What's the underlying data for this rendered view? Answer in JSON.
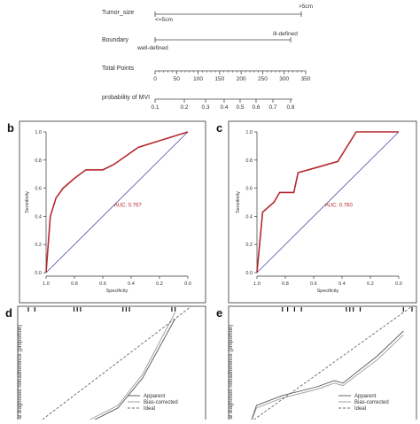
{
  "nomogram": {
    "rows": [
      {
        "label": "Tumor_size",
        "min_label": "<=5cm",
        "max_label": ">5cm"
      },
      {
        "label": "Boundary",
        "min_label": "well-defined",
        "max_label": "ill-defined"
      },
      {
        "label": "Total Points",
        "ticks": [
          "0",
          "50",
          "100",
          "150",
          "200",
          "250",
          "300",
          "350"
        ]
      },
      {
        "label": "probability of MVI",
        "ticks": [
          "0.1",
          "0.2",
          "0.3",
          "0.4",
          "0.5",
          "0.6",
          "0.7",
          "0.8"
        ]
      }
    ]
  },
  "chart_data": [
    {
      "type": "line",
      "panel_label": "b",
      "xlabel": "Specificity",
      "ylabel": "Sensitivity",
      "xticks": [
        "1.0",
        "0.8",
        "0.6",
        "0.4",
        "0.2",
        "0.0"
      ],
      "yticks": [
        "0.0",
        "0.2",
        "0.4",
        "0.6",
        "0.8",
        "1.0"
      ],
      "xlim": [
        1.0,
        0.0
      ],
      "ylim": [
        0.0,
        1.0
      ],
      "annotation": "AUC: 0.767",
      "series": [
        {
          "color": "#b5282e",
          "x": [
            1.0,
            0.97,
            0.93,
            0.88,
            0.8,
            0.72,
            0.6,
            0.52,
            0.35,
            0.0
          ],
          "y": [
            0.0,
            0.4,
            0.53,
            0.6,
            0.67,
            0.73,
            0.73,
            0.77,
            0.89,
            1.0
          ]
        }
      ],
      "reference": {
        "color": "#4a4aa8",
        "x": [
          1.0,
          0.0
        ],
        "y": [
          0.0,
          1.0
        ]
      }
    },
    {
      "type": "line",
      "panel_label": "c",
      "xlabel": "Specificity",
      "ylabel": "Sensitivity",
      "xticks": [
        "1.0",
        "0.8",
        "0.6",
        "0.4",
        "0.2",
        "0.0"
      ],
      "yticks": [
        "0.0",
        "0.2",
        "0.4",
        "0.6",
        "0.8",
        "1.0"
      ],
      "xlim": [
        1.0,
        0.0
      ],
      "ylim": [
        0.0,
        1.0
      ],
      "annotation": "AUC: 0.760",
      "series": [
        {
          "color": "#b5282e",
          "x": [
            1.0,
            0.96,
            0.88,
            0.84,
            0.74,
            0.71,
            0.57,
            0.43,
            0.3,
            0.0
          ],
          "y": [
            0.0,
            0.43,
            0.5,
            0.57,
            0.57,
            0.71,
            0.75,
            0.79,
            1.0,
            1.0
          ]
        }
      ],
      "reference": {
        "color": "#4a4aa8",
        "x": [
          1.0,
          0.0
        ],
        "y": [
          0.0,
          1.0
        ]
      }
    },
    {
      "type": "line",
      "panel_label": "d",
      "ylabel": "Actual diagnosed nonadherence (proportion)",
      "xlim": [
        0.0,
        1.0
      ],
      "ylim": [
        0.0,
        1.0
      ],
      "legend_position": "bottom-right",
      "rug": [
        0.0,
        0.04,
        0.28,
        0.3,
        0.32,
        0.58,
        0.6,
        0.62,
        0.88,
        0.9
      ],
      "series": [
        {
          "name": "Apparent",
          "style": "solid",
          "color": "#555555",
          "x": [
            0.25,
            0.4,
            0.55,
            0.7,
            0.9
          ],
          "y": [
            0.0,
            0.08,
            0.18,
            0.42,
            0.9
          ]
        },
        {
          "name": "Bias-corrected",
          "style": "solid",
          "color": "#999999",
          "x": [
            0.25,
            0.4,
            0.55,
            0.7,
            0.9
          ],
          "y": [
            0.0,
            0.1,
            0.2,
            0.45,
            0.95
          ]
        },
        {
          "name": "Ideal",
          "style": "dashed",
          "color": "#666666",
          "x": [
            0.0,
            1.0
          ],
          "y": [
            0.0,
            1.0
          ]
        }
      ]
    },
    {
      "type": "line",
      "panel_label": "e",
      "ylabel": "Actual diagnosed nonadherence (proportion)",
      "xlim": [
        0.0,
        1.0
      ],
      "ylim": [
        0.0,
        1.0
      ],
      "legend_position": "bottom-right",
      "rug": [
        0.25,
        0.28,
        0.32,
        0.36,
        0.62,
        0.64,
        0.66,
        0.7,
        0.95,
        1.0
      ],
      "series": [
        {
          "name": "Apparent",
          "style": "solid",
          "color": "#555555",
          "x": [
            0.05,
            0.1,
            0.25,
            0.45,
            0.55,
            0.6,
            0.8,
            0.95
          ],
          "y": [
            0.0,
            0.2,
            0.28,
            0.35,
            0.4,
            0.38,
            0.6,
            0.8
          ]
        },
        {
          "name": "Bias-corrected",
          "style": "solid",
          "color": "#999999",
          "x": [
            0.05,
            0.1,
            0.25,
            0.45,
            0.55,
            0.6,
            0.8,
            0.95
          ],
          "y": [
            0.0,
            0.18,
            0.26,
            0.33,
            0.38,
            0.36,
            0.57,
            0.77
          ]
        },
        {
          "name": "Ideal",
          "style": "dashed",
          "color": "#666666",
          "x": [
            0.0,
            1.0
          ],
          "y": [
            0.0,
            1.0
          ]
        }
      ]
    }
  ]
}
